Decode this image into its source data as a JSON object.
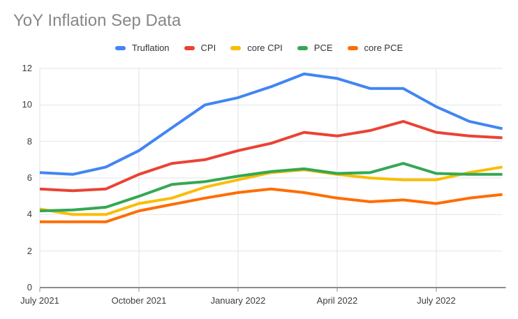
{
  "title": "YoY Inflation Sep Data",
  "colors": {
    "background": "#ffffff",
    "title_text": "#878787",
    "axis_label_text": "#3c3c3c",
    "legend_text": "#333333",
    "gridline": "#e6e6e6",
    "vertical_gridline": "#e0e0e0",
    "axis_line": "#8c8c8c"
  },
  "chart_data": {
    "type": "line",
    "title": "YoY Inflation Sep Data",
    "xlabel": "",
    "ylabel": "",
    "ylim": [
      0,
      12
    ],
    "yticks": [
      0,
      2,
      4,
      6,
      8,
      10,
      12
    ],
    "grid": true,
    "legend_position": "top",
    "x": [
      "Jul 2021",
      "Aug 2021",
      "Sep 2021",
      "Oct 2021",
      "Nov 2021",
      "Dec 2021",
      "Jan 2022",
      "Feb 2022",
      "Mar 2022",
      "Apr 2022",
      "May 2022",
      "Jun 2022",
      "Jul 2022",
      "Aug 2022",
      "Sep 2022"
    ],
    "x_axis_labels": [
      {
        "index": 0,
        "label": "July 2021"
      },
      {
        "index": 3,
        "label": "October 2021"
      },
      {
        "index": 6,
        "label": "January 2022"
      },
      {
        "index": 9,
        "label": "April 2022"
      },
      {
        "index": 12,
        "label": "July 2022"
      }
    ],
    "series": [
      {
        "name": "Truflation",
        "color": "#4285F4",
        "values": [
          6.3,
          6.2,
          6.6,
          7.5,
          8.75,
          10.0,
          10.4,
          11.0,
          11.7,
          11.45,
          10.9,
          10.9,
          9.9,
          9.1,
          8.7
        ]
      },
      {
        "name": "CPI",
        "color": "#EA4335",
        "values": [
          5.4,
          5.3,
          5.4,
          6.2,
          6.8,
          7.0,
          7.5,
          7.9,
          8.5,
          8.3,
          8.6,
          9.1,
          8.5,
          8.3,
          8.2
        ]
      },
      {
        "name": "core CPI",
        "color": "#FBBC04",
        "values": [
          4.3,
          4.0,
          4.0,
          4.6,
          4.9,
          5.5,
          5.9,
          6.3,
          6.45,
          6.2,
          6.0,
          5.9,
          5.9,
          6.3,
          6.6
        ]
      },
      {
        "name": "PCE",
        "color": "#34A853",
        "values": [
          4.2,
          4.25,
          4.4,
          5.0,
          5.65,
          5.8,
          6.1,
          6.35,
          6.5,
          6.25,
          6.3,
          6.8,
          6.25,
          6.2,
          6.2
        ]
      },
      {
        "name": "core PCE",
        "color": "#FF6D01",
        "values": [
          3.6,
          3.6,
          3.6,
          4.2,
          4.55,
          4.9,
          5.2,
          5.4,
          5.2,
          4.9,
          4.7,
          4.8,
          4.6,
          4.9,
          5.1
        ]
      }
    ]
  }
}
